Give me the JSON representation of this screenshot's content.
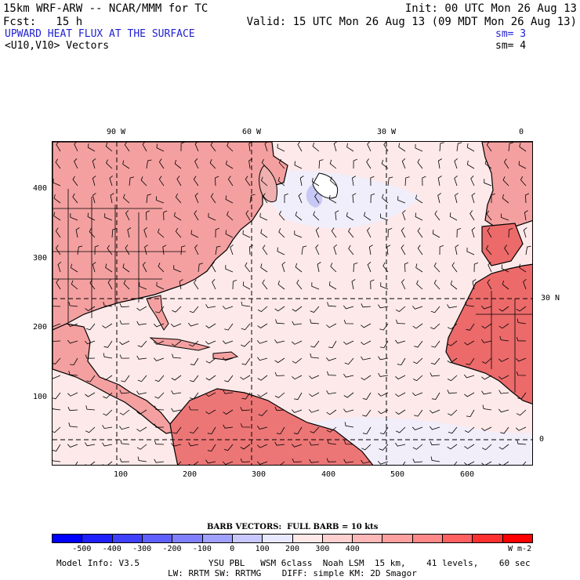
{
  "header": {
    "model_title": "15km WRF-ARW -- NCAR/MMM for TC",
    "init": "Init: 00 UTC Mon 26 Aug 13",
    "fcst": "Fcst:   15 h",
    "valid": "Valid: 15 UTC Mon 26 Aug 13 (09 MDT Mon 26 Aug 13)",
    "field_title": "UPWARD HEAT FLUX AT THE SURFACE",
    "field_sm": "sm= 3",
    "vector_title": "<U10,V10> Vectors",
    "vector_sm": "sm= 4"
  },
  "axes": {
    "top_lon_labels": [
      "90 W",
      "60 W",
      "30 W",
      "0"
    ],
    "right_lat_labels": [
      "30 N",
      "0"
    ],
    "left_ticks": [
      "400",
      "300",
      "200",
      "100"
    ],
    "bottom_ticks": [
      "100",
      "200",
      "300",
      "400",
      "500",
      "600"
    ]
  },
  "map": {
    "ocean_color": "#fde9e9",
    "land_color": "#f4a0a0",
    "hot_land_color": "#ec6a6a",
    "cool_color": "#e4e4fa"
  },
  "barb_legend": "BARB VECTORS:  FULL BARB = 10 kts",
  "colorbar": {
    "colors": [
      "#0000ff",
      "#2020ff",
      "#4040ff",
      "#6060ff",
      "#8080ff",
      "#a0a0ff",
      "#c8c8ff",
      "#e8e8ff",
      "#ffe8e8",
      "#ffd0d0",
      "#ffb8b8",
      "#ffa0a0",
      "#ff8888",
      "#ff6060",
      "#ff3030",
      "#ff0000"
    ],
    "labels": [
      "-500",
      "-400",
      "-300",
      "-200",
      "-100",
      "0",
      "100",
      "200",
      "300",
      "400"
    ],
    "units": "W m-2"
  },
  "footer": {
    "model_info": "Model Info: V3.5",
    "physics_line1": "YSU PBL   WSM 6class  Noah LSM  15 km,    41 levels,    60 sec",
    "physics_line2": "LW: RRTM SW: RRTMG    DIFF: simple KM: 2D Smagor"
  }
}
